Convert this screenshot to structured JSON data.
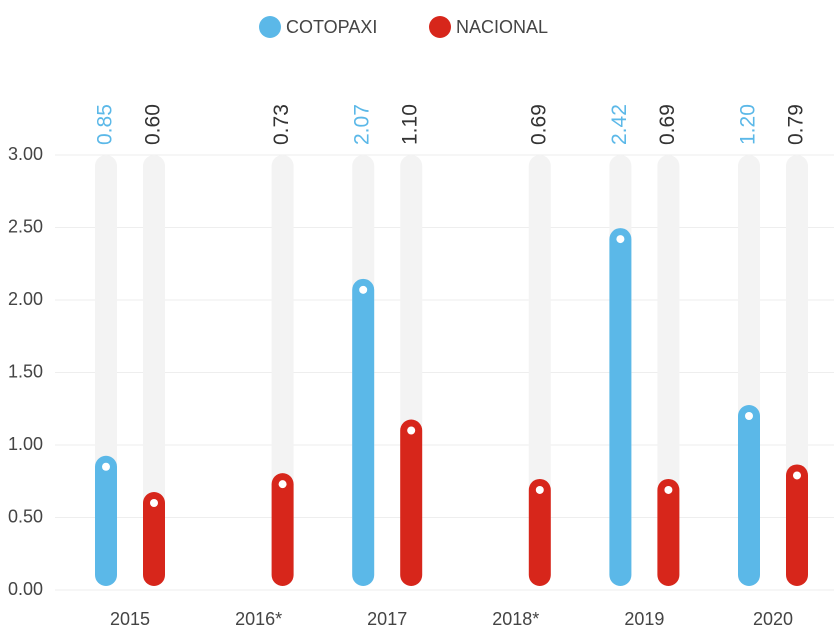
{
  "chart_data": {
    "type": "bar",
    "categories": [
      "2015",
      "2016*",
      "2017",
      "2018*",
      "2019",
      "2020"
    ],
    "series": [
      {
        "name": "COTOPAXI",
        "color": "#5bb8e8",
        "values": [
          0.85,
          null,
          2.07,
          null,
          2.42,
          1.2
        ],
        "value_labels": [
          "0.85",
          null,
          "2.07",
          null,
          "2.42",
          "1.20"
        ]
      },
      {
        "name": "NACIONAL",
        "color": "#d7261b",
        "values": [
          0.6,
          0.73,
          1.1,
          0.69,
          0.69,
          0.79
        ],
        "value_labels": [
          "0.60",
          "0.73",
          "1.10",
          "0.69",
          "0.69",
          "0.79"
        ]
      }
    ],
    "ylim": [
      0,
      3
    ],
    "yticks": [
      {
        "value": 0,
        "label": "0.00"
      },
      {
        "value": 0.5,
        "label": "0.50"
      },
      {
        "value": 1,
        "label": "1.00"
      },
      {
        "value": 1.5,
        "label": "1.50"
      },
      {
        "value": 2,
        "label": "2.00"
      },
      {
        "value": 2.5,
        "label": "2.50"
      },
      {
        "value": 3,
        "label": "3.00"
      }
    ],
    "grid": true,
    "legend": "top"
  }
}
